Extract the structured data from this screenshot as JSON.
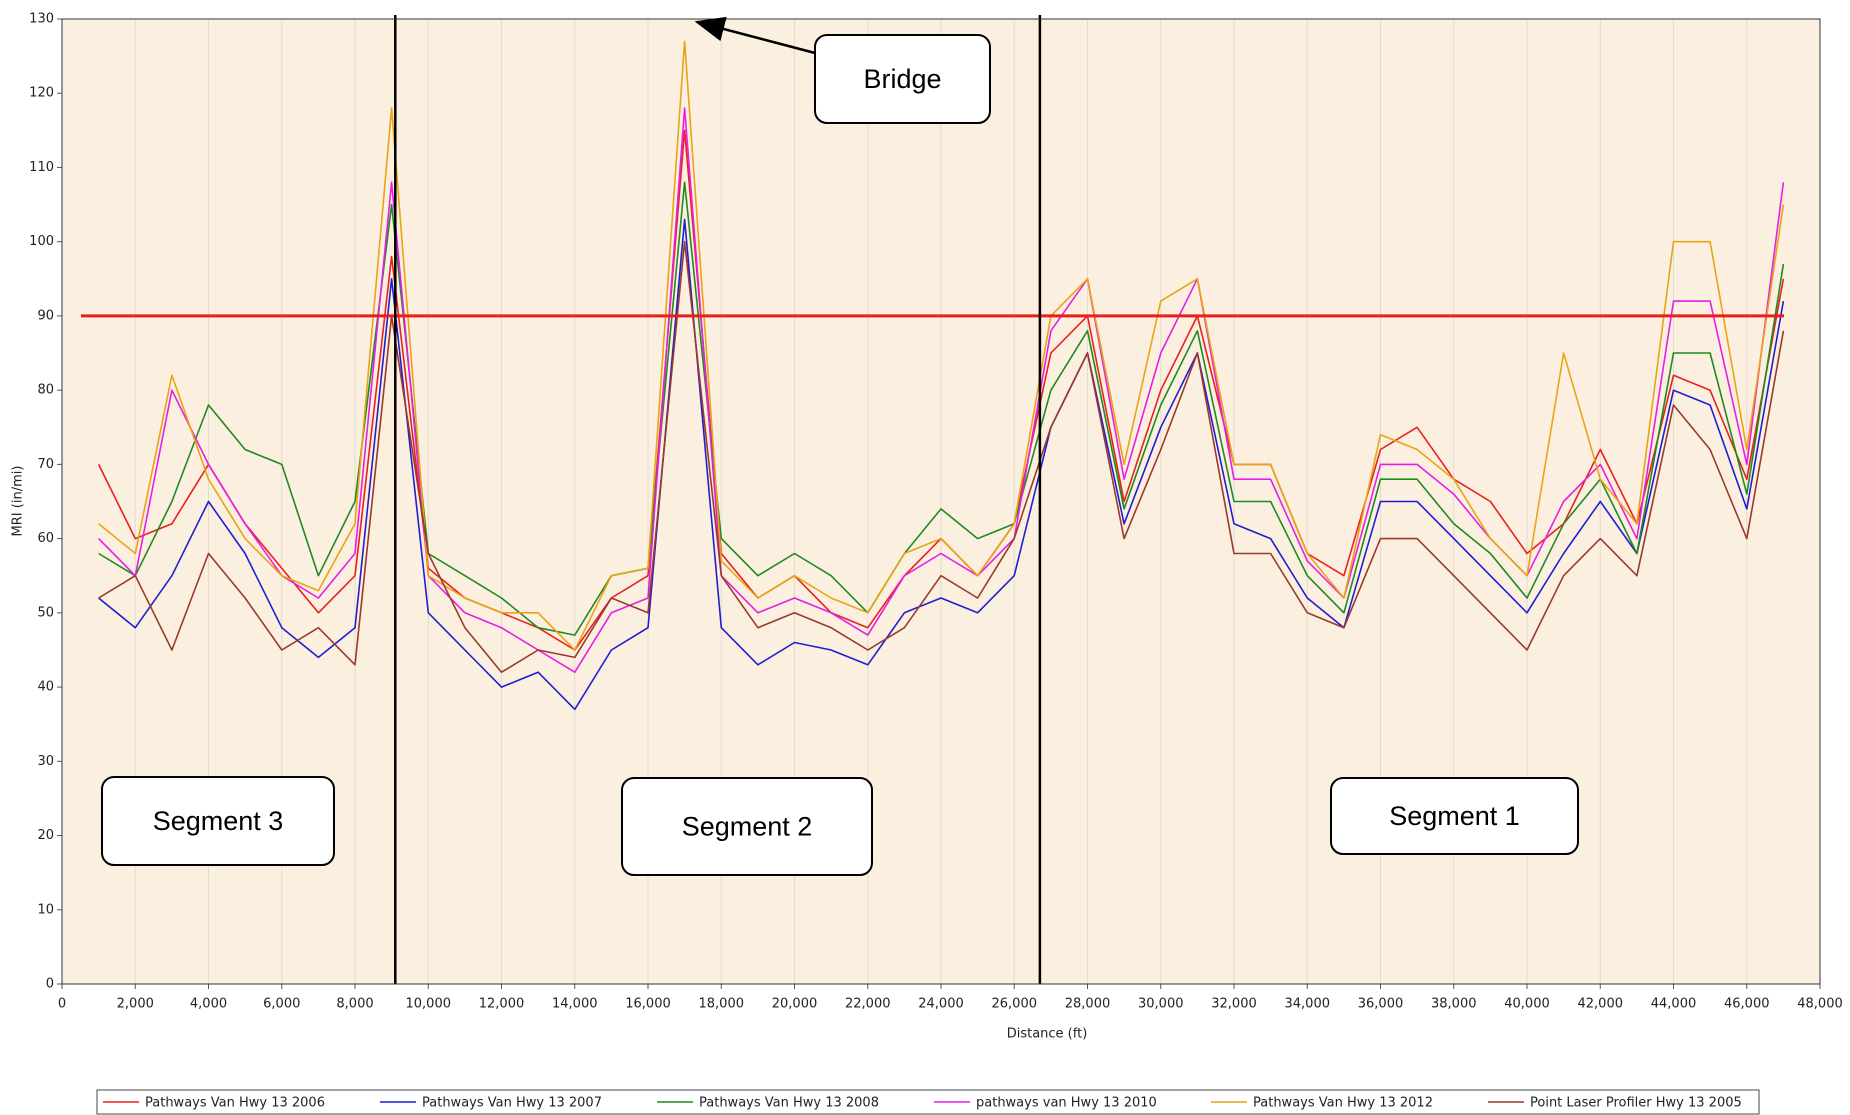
{
  "chart_data": {
    "type": "line",
    "y_label": "MRI (in/mi)",
    "x_label": "Distance (ft)",
    "x": [
      1000,
      2000,
      3000,
      4000,
      5000,
      6000,
      7000,
      8000,
      9000,
      10000,
      11000,
      12000,
      13000,
      14000,
      15000,
      16000,
      17000,
      18000,
      19000,
      20000,
      21000,
      22000,
      23000,
      24000,
      25000,
      26000,
      27000,
      28000,
      29000,
      30000,
      31000,
      32000,
      33000,
      34000,
      35000,
      36000,
      37000,
      38000,
      39000,
      40000,
      41000,
      42000,
      43000,
      44000,
      45000,
      46000,
      47000
    ],
    "series": [
      {
        "name": "Pathways Van Hwy 13 2006",
        "color": "#e8211e",
        "values": [
          70,
          60,
          62,
          70,
          62,
          56,
          50,
          55,
          98,
          56,
          52,
          50,
          48,
          45,
          52,
          55,
          115,
          58,
          52,
          55,
          50,
          48,
          55,
          60,
          55,
          62,
          85,
          90,
          65,
          80,
          90,
          70,
          70,
          58,
          55,
          72,
          75,
          68,
          65,
          58,
          62,
          72,
          62,
          82,
          80,
          68,
          95
        ]
      },
      {
        "name": "Pathways Van Hwy 13 2007",
        "color": "#1f1fd0",
        "values": [
          52,
          48,
          55,
          65,
          58,
          48,
          44,
          48,
          95,
          50,
          45,
          40,
          42,
          37,
          45,
          48,
          103,
          48,
          43,
          46,
          45,
          43,
          50,
          52,
          50,
          55,
          75,
          85,
          62,
          75,
          85,
          62,
          60,
          52,
          48,
          65,
          65,
          60,
          55,
          50,
          58,
          65,
          58,
          80,
          78,
          64,
          92
        ]
      },
      {
        "name": "Pathways Van Hwy 13 2008",
        "color": "#1f8a1f",
        "values": [
          58,
          55,
          65,
          78,
          72,
          70,
          55,
          65,
          105,
          58,
          55,
          52,
          48,
          47,
          55,
          56,
          108,
          60,
          55,
          58,
          55,
          50,
          58,
          64,
          60,
          62,
          80,
          88,
          64,
          78,
          88,
          65,
          65,
          55,
          50,
          68,
          68,
          62,
          58,
          52,
          62,
          68,
          58,
          85,
          85,
          66,
          97
        ]
      },
      {
        "name": "pathways van Hwy 13 2010",
        "color": "#e61ee6",
        "values": [
          60,
          55,
          80,
          70,
          62,
          55,
          52,
          58,
          108,
          55,
          50,
          48,
          45,
          42,
          50,
          52,
          118,
          55,
          50,
          52,
          50,
          47,
          55,
          58,
          55,
          60,
          88,
          95,
          68,
          85,
          95,
          68,
          68,
          57,
          52,
          70,
          70,
          66,
          60,
          55,
          65,
          70,
          60,
          92,
          92,
          70,
          108
        ]
      },
      {
        "name": "Pathways Van Hwy 13 2012",
        "color": "#e8a415",
        "values": [
          62,
          58,
          82,
          68,
          60,
          55,
          53,
          62,
          118,
          55,
          52,
          50,
          50,
          45,
          55,
          56,
          127,
          57,
          52,
          55,
          52,
          50,
          58,
          60,
          55,
          62,
          90,
          95,
          70,
          92,
          95,
          70,
          70,
          58,
          52,
          74,
          72,
          68,
          60,
          55,
          85,
          68,
          62,
          100,
          100,
          72,
          105
        ]
      },
      {
        "name": "Point Laser Profiler Hwy 13 2005",
        "color": "#9a3a2a",
        "values": [
          52,
          55,
          45,
          58,
          52,
          45,
          48,
          43,
          90,
          58,
          48,
          42,
          45,
          44,
          52,
          50,
          100,
          55,
          48,
          50,
          48,
          45,
          48,
          55,
          52,
          60,
          75,
          85,
          60,
          72,
          85,
          58,
          58,
          50,
          48,
          60,
          60,
          55,
          50,
          45,
          55,
          60,
          55,
          78,
          72,
          60,
          88
        ]
      }
    ],
    "xlim": [
      0,
      48000
    ],
    "xticks": [
      0,
      {
        "value": 2000,
        "label": "2,000"
      },
      {
        "value": 4000,
        "label": "4,000"
      },
      {
        "value": 6000,
        "label": "6,000"
      },
      {
        "value": 8000,
        "label": "8,000"
      },
      {
        "value": 10000,
        "label": "10,000"
      },
      {
        "value": 12000,
        "label": "12,000"
      },
      {
        "value": 14000,
        "label": "14,000"
      },
      {
        "value": 16000,
        "label": "16,000"
      },
      {
        "value": 18000,
        "label": "18,000"
      },
      {
        "value": 20000,
        "label": "20,000"
      },
      {
        "value": 22000,
        "label": "22,000"
      },
      {
        "value": 24000,
        "label": "24,000"
      },
      {
        "value": 26000,
        "label": "26,000"
      },
      {
        "value": 28000,
        "label": "28,000"
      },
      {
        "value": 30000,
        "label": "30,000"
      },
      {
        "value": 32000,
        "label": "32,000"
      },
      {
        "value": 34000,
        "label": "34,000"
      },
      {
        "value": 36000,
        "label": "36,000"
      },
      {
        "value": 38000,
        "label": "38,000"
      },
      {
        "value": 40000,
        "label": "40,000"
      },
      {
        "value": 42000,
        "label": "42,000"
      },
      {
        "value": 44000,
        "label": "44,000"
      },
      {
        "value": 46000,
        "label": "46,000"
      },
      {
        "value": 48000,
        "label": "48,000"
      }
    ],
    "ylim": [
      0,
      130
    ],
    "yticks": [
      0,
      10,
      20,
      30,
      40,
      50,
      60,
      70,
      80,
      90,
      100,
      110,
      120,
      130
    ],
    "grid": "x",
    "threshold": 90,
    "threshold_color": "#ee1c1c",
    "dividers": [
      9100,
      26700
    ],
    "annotations": [
      "Segment 3",
      "Segment 2",
      "Segment 1",
      "Bridge"
    ],
    "legend": "bottom"
  }
}
